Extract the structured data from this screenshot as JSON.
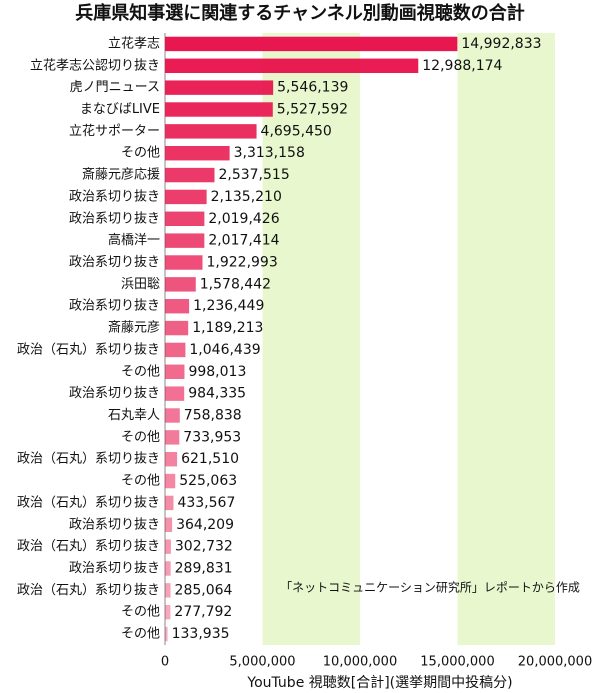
{
  "chart_data": {
    "type": "hbar",
    "title": "兵庫県知事選に関連するチャンネル別動画視聴数の合計",
    "categories": [
      "立花孝志",
      "立花孝志公認切り抜き",
      "虎ノ門ニュース",
      "まなびばLIVE",
      "立花サポーター",
      "その他",
      "斎藤元彦応援",
      "政治系切り抜き",
      "政治系切り抜き",
      "高橋洋一",
      "政治系切り抜き",
      "浜田聡",
      "政治系切り抜き",
      "斎藤元彦",
      "政治（石丸）系切り抜き",
      "その他",
      "政治系切り抜き",
      "石丸幸人",
      "その他",
      "政治（石丸）系切り抜き",
      "その他",
      "政治（石丸）系切り抜き",
      "政治系切り抜き",
      "政治（石丸）系切り抜き",
      "政治系切り抜き",
      "政治（石丸）系切り抜き",
      "その他",
      "その他"
    ],
    "values": [
      14992833,
      12988174,
      5546139,
      5527592,
      4695450,
      3313158,
      2537515,
      2135210,
      2019426,
      2017414,
      1922993,
      1578442,
      1236449,
      1189213,
      1046439,
      998013,
      984335,
      758838,
      733953,
      621510,
      525063,
      433567,
      364209,
      302732,
      289831,
      285064,
      277792,
      133935
    ],
    "value_labels": [
      "14,992,833",
      "12,988,174",
      "5,546,139",
      "5,527,592",
      "4,695,450",
      "3,313,158",
      "2,537,515",
      "2,135,210",
      "2,019,426",
      "2,017,414",
      "1,922,993",
      "1,578,442",
      "1,236,449",
      "1,189,213",
      "1,046,439",
      "998,013",
      "984,335",
      "758,838",
      "733,953",
      "621,510",
      "525,063",
      "433,567",
      "364,209",
      "302,732",
      "289,831",
      "285,064",
      "277,792",
      "133,935"
    ],
    "color": "#e8174f",
    "xlim": [
      0,
      20000000
    ],
    "xticks": [
      0,
      {
        "value": 5000000,
        "label": "5,000,000"
      },
      {
        "value": 10000000,
        "label": "10,000,000"
      },
      {
        "value": 15000000,
        "label": "15,000,000"
      },
      {
        "value": 20000000,
        "label": "20,000,000"
      }
    ],
    "xlabel": "YouTube 視聴数[合計](選挙期間中投稿分)",
    "annotation": "「ネットコミュニケーション研究所」レポートから作成",
    "grid": true
  }
}
